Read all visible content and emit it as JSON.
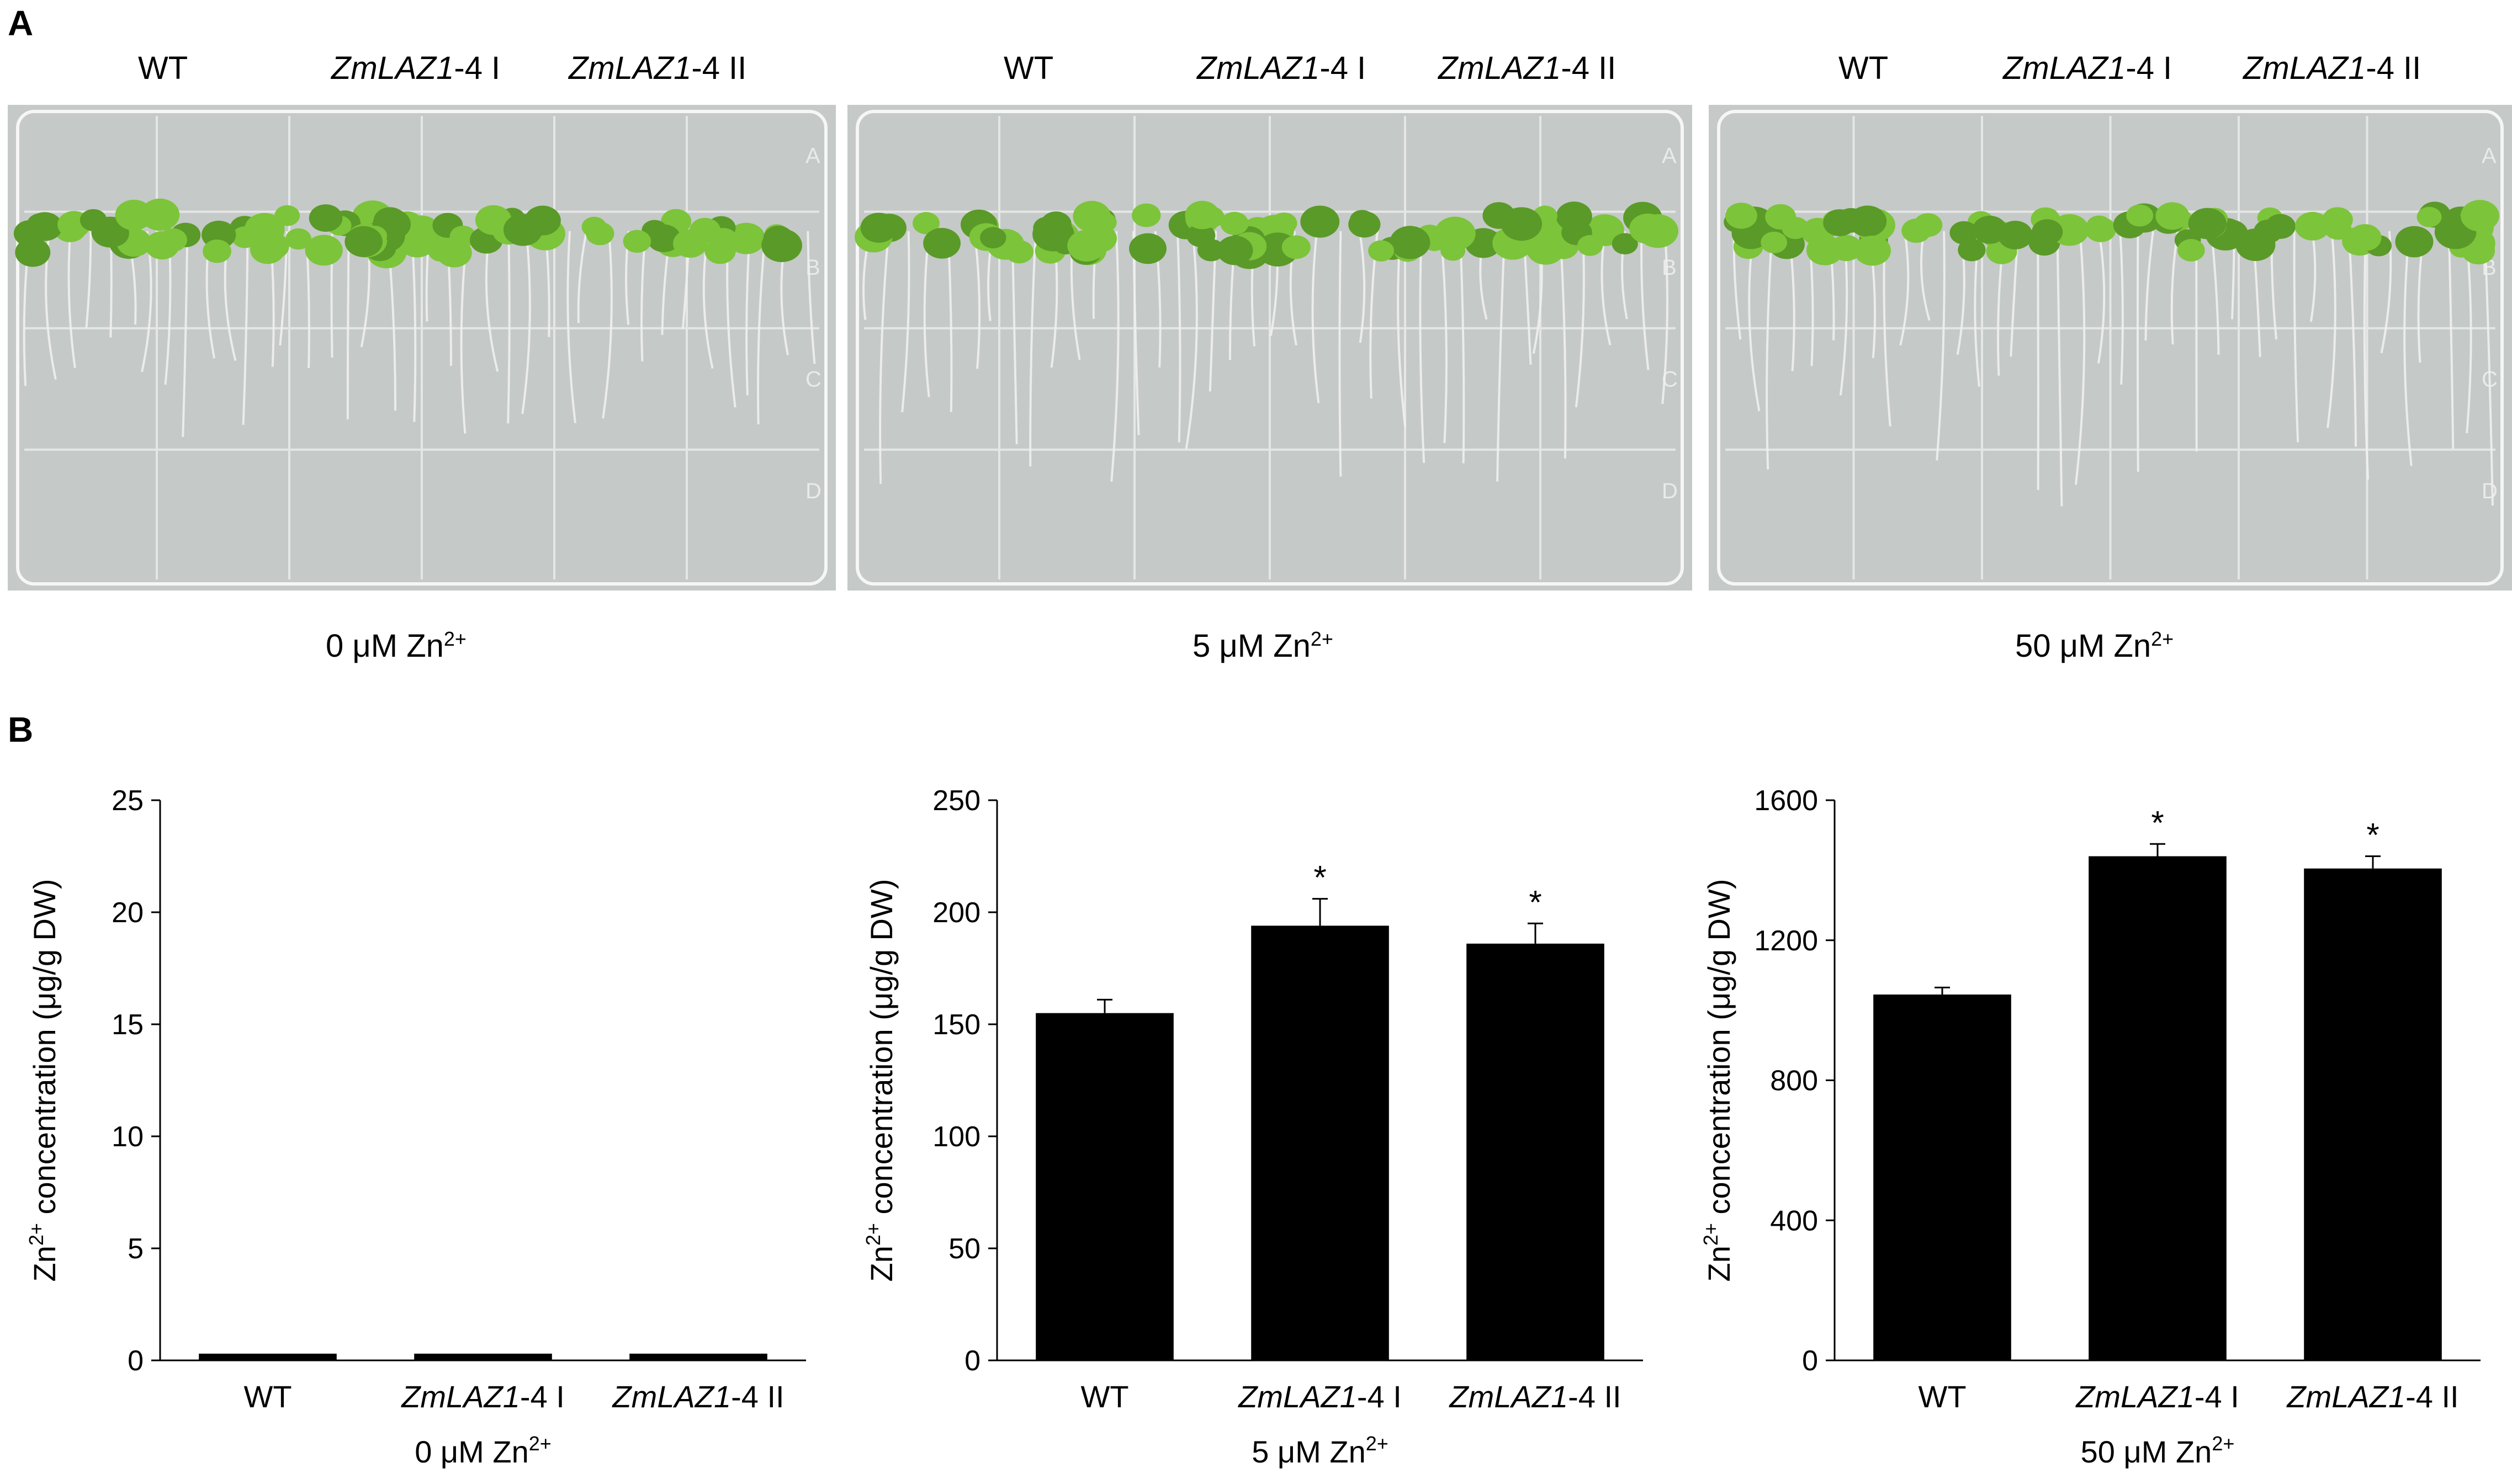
{
  "panel_a": {
    "letter": "A",
    "plates": [
      {
        "genotypes": [
          {
            "name": "WT",
            "suffix": ""
          },
          {
            "name": "ZmLAZ1",
            "suffix": "-4 I"
          },
          {
            "name": "ZmLAZ1",
            "suffix": "-4 II"
          }
        ],
        "condition": {
          "prefix": "0 μM Zn",
          "sup": "2+"
        }
      },
      {
        "genotypes": [
          {
            "name": "WT",
            "suffix": ""
          },
          {
            "name": "ZmLAZ1",
            "suffix": "-4 I"
          },
          {
            "name": "ZmLAZ1",
            "suffix": "-4 II"
          }
        ],
        "condition": {
          "prefix": "5 μM Zn",
          "sup": "2+"
        }
      },
      {
        "genotypes": [
          {
            "name": "WT",
            "suffix": ""
          },
          {
            "name": "ZmLAZ1",
            "suffix": "-4 I"
          },
          {
            "name": "ZmLAZ1",
            "suffix": "-4 II"
          }
        ],
        "condition": {
          "prefix": "50 μM  Zn",
          "sup": "2+"
        }
      }
    ],
    "plate_markers": [
      "A",
      "B",
      "C",
      "D"
    ],
    "colors": {
      "leaf": "#7cc43a",
      "leaf_dark": "#5a9a28",
      "root": "#eef0ee",
      "agar": "#c5c9c7",
      "grid": "#e4e7e5"
    }
  },
  "panel_b": {
    "letter": "B"
  },
  "chart_data": [
    {
      "type": "bar",
      "categories": [
        {
          "name": "WT",
          "suffix": ""
        },
        {
          "name": "ZmLAZ1",
          "suffix": "-4 I"
        },
        {
          "name": "ZmLAZ1",
          "suffix": "-4 II"
        }
      ],
      "values": [
        0.3,
        0.3,
        0.3
      ],
      "errors": [
        0,
        0,
        0
      ],
      "significance": [
        "",
        "",
        ""
      ],
      "ylabel": {
        "prefix": "Zn",
        "sup": "2+",
        "rest": " concentration (μg/g DW)"
      },
      "xlabel": {
        "prefix": "0 μM Zn",
        "sup": "2+"
      },
      "ylim": [
        0,
        25
      ],
      "yticks": [
        0,
        5,
        10,
        15,
        20,
        25
      ],
      "bar_color": "#000000"
    },
    {
      "type": "bar",
      "categories": [
        {
          "name": "WT",
          "suffix": ""
        },
        {
          "name": "ZmLAZ1",
          "suffix": "-4 I"
        },
        {
          "name": "ZmLAZ1",
          "suffix": "-4 II"
        }
      ],
      "values": [
        155,
        194,
        186
      ],
      "errors": [
        6,
        12,
        9
      ],
      "significance": [
        "",
        "*",
        "*"
      ],
      "ylabel": {
        "prefix": "Zn",
        "sup": "2+",
        "rest": " concentration (μg/g DW)"
      },
      "xlabel": {
        "prefix": "5 μM Zn",
        "sup": "2+"
      },
      "ylim": [
        0,
        250
      ],
      "yticks": [
        0,
        50,
        100,
        150,
        200,
        250
      ],
      "bar_color": "#000000"
    },
    {
      "type": "bar",
      "categories": [
        {
          "name": "WT",
          "suffix": ""
        },
        {
          "name": "ZmLAZ1",
          "suffix": "-4 I"
        },
        {
          "name": "ZmLAZ1",
          "suffix": "-4 II"
        }
      ],
      "values": [
        1045,
        1440,
        1405
      ],
      "errors": [
        20,
        35,
        35
      ],
      "significance": [
        "",
        "*",
        "*"
      ],
      "ylabel": {
        "prefix": "Zn",
        "sup": "2+",
        "rest": " concentration (μg/g DW)"
      },
      "xlabel": {
        "prefix": "50 μM  Zn",
        "sup": "2+"
      },
      "ylim": [
        0,
        1600
      ],
      "yticks": [
        0,
        400,
        800,
        1200,
        1600
      ],
      "bar_color": "#000000"
    }
  ]
}
